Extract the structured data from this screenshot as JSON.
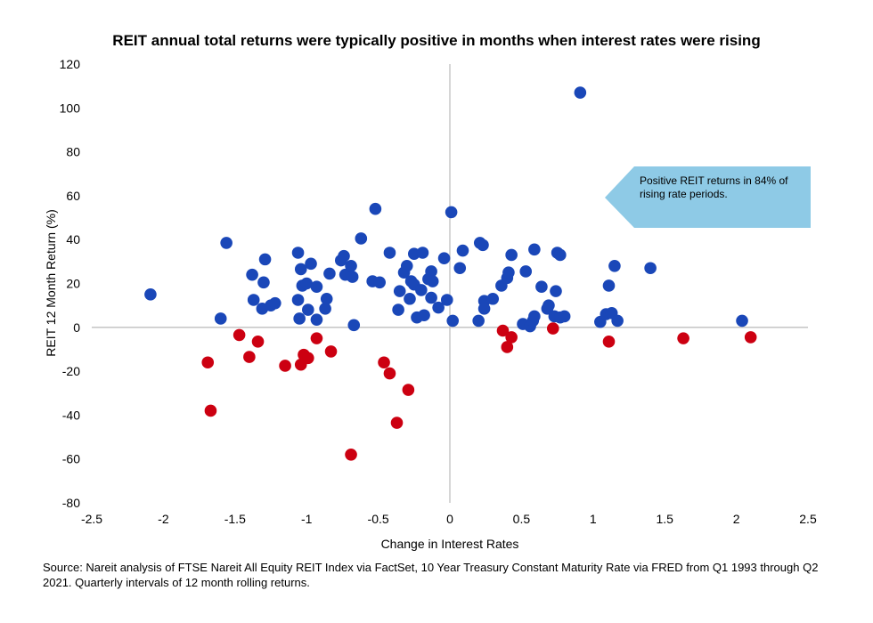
{
  "chart_data": {
    "type": "scatter",
    "title": "REIT annual total returns were typically positive in months when interest rates were rising",
    "xlabel": "Change in Interest Rates",
    "ylabel": "REIT 12 Month Return (%)",
    "xlim": [
      -2.5,
      2.5
    ],
    "ylim": [
      -80,
      120
    ],
    "xticks": [
      "-2.5",
      "-2",
      "-1.5",
      "-1",
      "-0.5",
      "0",
      "0.5",
      "1",
      "1.5",
      "2",
      "2.5"
    ],
    "yticks": [
      "-80",
      "-60",
      "-40",
      "-20",
      "0",
      "20",
      "40",
      "60",
      "80",
      "100",
      "120"
    ],
    "grid": false,
    "legend": "none",
    "annotation": "Positive REIT returns in 84% of rising rate periods.",
    "annotation_color": "#8ecae6",
    "series": [
      {
        "color": "#1a47b8",
        "points": [
          [
            -2.09,
            15
          ],
          [
            -1.6,
            4
          ],
          [
            -1.56,
            38.5
          ],
          [
            -1.38,
            24
          ],
          [
            -1.37,
            12.5
          ],
          [
            -1.31,
            8.5
          ],
          [
            -1.3,
            20.5
          ],
          [
            -1.29,
            31
          ],
          [
            -1.25,
            10
          ],
          [
            -1.22,
            11
          ],
          [
            -1.06,
            34
          ],
          [
            -1.06,
            12.5
          ],
          [
            -1.05,
            4
          ],
          [
            -1.04,
            26.5
          ],
          [
            -1.03,
            19
          ],
          [
            -1.0,
            20
          ],
          [
            -0.99,
            8
          ],
          [
            -0.97,
            29
          ],
          [
            -0.93,
            18.5
          ],
          [
            -0.93,
            3.5
          ],
          [
            -0.87,
            8.5
          ],
          [
            -0.86,
            13
          ],
          [
            -0.84,
            24.5
          ],
          [
            -0.76,
            30.5
          ],
          [
            -0.74,
            32.5
          ],
          [
            -0.73,
            24
          ],
          [
            -0.69,
            28
          ],
          [
            -0.68,
            23
          ],
          [
            -0.67,
            1
          ],
          [
            -0.62,
            40.5
          ],
          [
            -0.54,
            21
          ],
          [
            -0.49,
            20.5
          ],
          [
            -0.52,
            54
          ],
          [
            -0.42,
            34
          ],
          [
            -0.36,
            8
          ],
          [
            -0.35,
            16.5
          ],
          [
            -0.32,
            25
          ],
          [
            -0.3,
            28
          ],
          [
            -0.28,
            13
          ],
          [
            -0.27,
            21
          ],
          [
            -0.25,
            33.5
          ],
          [
            -0.25,
            19.5
          ],
          [
            -0.23,
            4.5
          ],
          [
            -0.2,
            17
          ],
          [
            -0.19,
            34
          ],
          [
            -0.18,
            5.5
          ],
          [
            -0.15,
            22
          ],
          [
            -0.13,
            25.5
          ],
          [
            -0.13,
            13.5
          ],
          [
            -0.12,
            21
          ],
          [
            -0.08,
            9
          ],
          [
            -0.04,
            31.5
          ],
          [
            -0.02,
            12.5
          ],
          [
            0.01,
            52.5
          ],
          [
            0.02,
            3
          ],
          [
            0.07,
            27
          ],
          [
            0.09,
            35
          ],
          [
            0.21,
            38.5
          ],
          [
            0.23,
            37.5
          ],
          [
            0.24,
            12
          ],
          [
            0.24,
            8.5
          ],
          [
            0.2,
            3
          ],
          [
            0.3,
            13
          ],
          [
            0.36,
            19
          ],
          [
            0.4,
            22.5
          ],
          [
            0.41,
            25
          ],
          [
            0.43,
            33
          ],
          [
            0.53,
            25.5
          ],
          [
            0.51,
            1.5
          ],
          [
            0.56,
            0.5
          ],
          [
            0.58,
            3
          ],
          [
            0.59,
            5
          ],
          [
            0.59,
            35.5
          ],
          [
            0.64,
            18.5
          ],
          [
            0.68,
            8.5
          ],
          [
            0.69,
            10
          ],
          [
            0.75,
            34
          ],
          [
            0.77,
            33
          ],
          [
            0.74,
            16.5
          ],
          [
            0.73,
            5
          ],
          [
            0.77,
            4.5
          ],
          [
            0.8,
            5
          ],
          [
            0.91,
            107
          ],
          [
            1.05,
            2.5
          ],
          [
            1.09,
            6
          ],
          [
            1.11,
            19
          ],
          [
            1.13,
            6.5
          ],
          [
            1.15,
            28
          ],
          [
            1.17,
            3
          ],
          [
            1.4,
            27
          ],
          [
            2.04,
            3
          ]
        ]
      },
      {
        "color": "#cc0011",
        "points": [
          [
            -1.69,
            -16
          ],
          [
            -1.67,
            -38
          ],
          [
            -1.47,
            -3.5
          ],
          [
            -1.4,
            -13.5
          ],
          [
            -1.34,
            -6.5
          ],
          [
            -1.15,
            -17.5
          ],
          [
            -1.04,
            -17
          ],
          [
            -1.02,
            -12.5
          ],
          [
            -0.99,
            -14
          ],
          [
            -0.93,
            -5
          ],
          [
            -0.83,
            -11
          ],
          [
            -0.69,
            -58
          ],
          [
            -0.46,
            -16
          ],
          [
            -0.42,
            -21
          ],
          [
            -0.37,
            -43.5
          ],
          [
            -0.29,
            -28.5
          ],
          [
            0.37,
            -1.5
          ],
          [
            0.4,
            -9
          ],
          [
            0.43,
            -4.5
          ],
          [
            0.72,
            -0.5
          ],
          [
            1.11,
            -6.5
          ],
          [
            1.63,
            -5
          ],
          [
            2.1,
            -4.5
          ]
        ]
      }
    ]
  },
  "source": "Source: Nareit analysis of FTSE Nareit All Equity REIT Index via FactSet, 10 Year Treasury Constant Maturity Rate via FRED from Q1 1993 through Q2 2021. Quarterly intervals of 12 month rolling returns."
}
